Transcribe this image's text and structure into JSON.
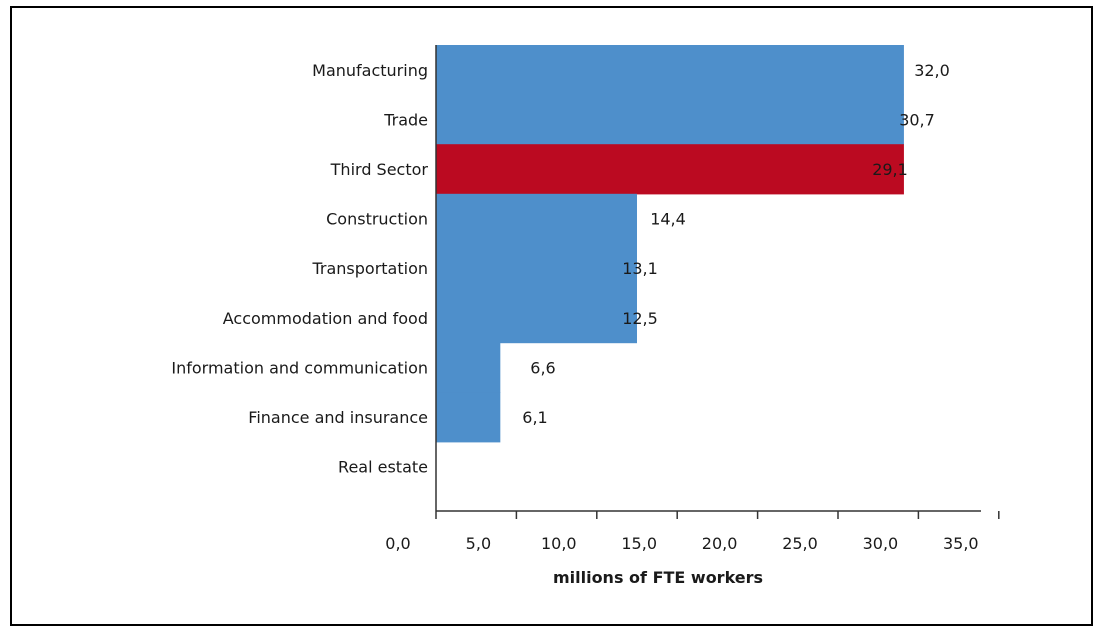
{
  "chart_data": {
    "type": "bar",
    "orientation": "horizontal",
    "categories": [
      "Manufacturing",
      "Trade",
      "Third Sector",
      "Construction",
      "Transportation",
      "Accommodation and food",
      "Information and communication",
      "Finance and insurance",
      "Real estate"
    ],
    "values": [
      32.0,
      30.7,
      29.1,
      14.4,
      13.1,
      12.5,
      6.6,
      6.1,
      null
    ],
    "value_labels": [
      "32,0",
      "30,7",
      "29,1",
      "14,4",
      "13,1",
      "12,5",
      "6,6",
      "6,1",
      ""
    ],
    "bar_fill_values": [
      29.1,
      29.1,
      29.1,
      12.5,
      12.5,
      12.5,
      4.0,
      4.0,
      null
    ],
    "highlight_category": "Third Sector",
    "xlim": [
      0,
      35
    ],
    "xticks": [
      0,
      5,
      10,
      15,
      20,
      25,
      30,
      35
    ],
    "xtick_labels": [
      "0,0",
      "5,0",
      "10,0",
      "15,0",
      "20,0",
      "25,0",
      "30,0",
      "35,0"
    ],
    "xlabel": "millions of FTE workers",
    "ylabel": "",
    "title": "",
    "grid": false,
    "legend": "none",
    "colors": {
      "bar": "#4e8fcb",
      "highlight": "#bb0a21",
      "axis": "#333333",
      "text": "#1a1a1a"
    }
  }
}
